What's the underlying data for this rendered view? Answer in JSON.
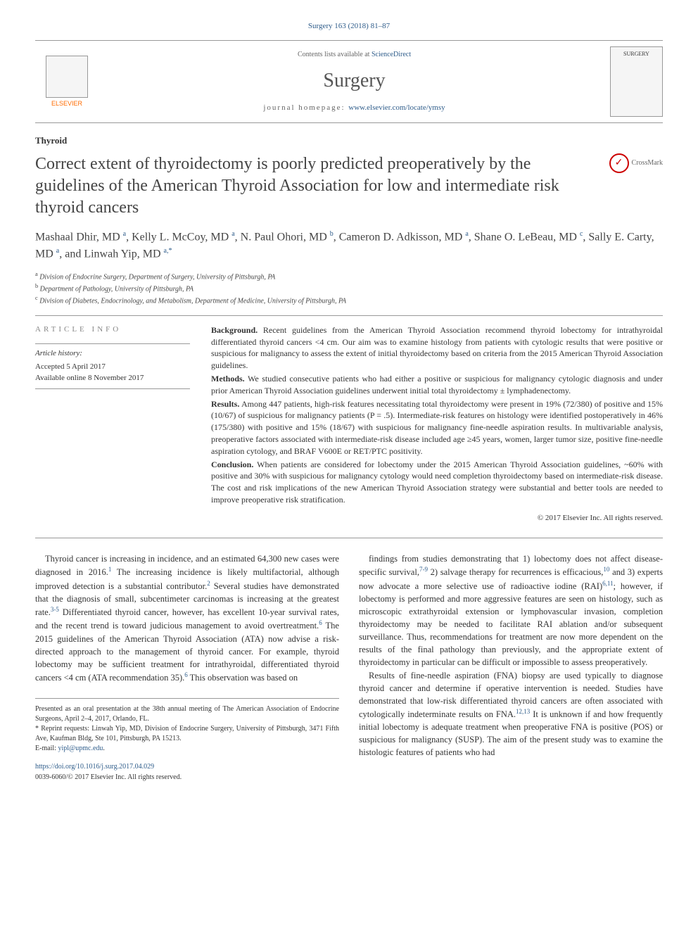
{
  "journal_ref": "Surgery 163 (2018) 81–87",
  "header": {
    "contents_prefix": "Contents lists available at ",
    "contents_link": "ScienceDirect",
    "journal_name": "Surgery",
    "homepage_prefix": "journal homepage: ",
    "homepage_link": "www.elsevier.com/locate/ymsy",
    "publisher": "ELSEVIER",
    "cover_label": "SURGERY"
  },
  "section_label": "Thyroid",
  "title": "Correct extent of thyroidectomy is poorly predicted preoperatively by the guidelines of the American Thyroid Association for low and intermediate risk thyroid cancers",
  "crossmark": "CrossMark",
  "authors_html": "Mashaal Dhir, MD <sup>a</sup>, Kelly L. McCoy, MD <sup>a</sup>, N. Paul Ohori, MD <sup>b</sup>, Cameron D. Adkisson, MD <sup>a</sup>, Shane O. LeBeau, MD <sup>c</sup>, Sally E. Carty, MD <sup>a</sup>, and Linwah Yip, MD <sup>a,*</sup>",
  "affiliations": {
    "a": "Division of Endocrine Surgery, Department of Surgery, University of Pittsburgh, PA",
    "b": "Department of Pathology, University of Pittsburgh, PA",
    "c": "Division of Diabetes, Endocrinology, and Metabolism, Department of Medicine, University of Pittsburgh, PA"
  },
  "article_info": {
    "heading": "ARTICLE INFO",
    "history_label": "Article history:",
    "accepted": "Accepted 5 April 2017",
    "online": "Available online 8 November 2017"
  },
  "abstract": {
    "background_label": "Background.",
    "background": "Recent guidelines from the American Thyroid Association recommend thyroid lobectomy for intrathyroidal differentiated thyroid cancers <4 cm. Our aim was to examine histology from patients with cytologic results that were positive or suspicious for malignancy to assess the extent of initial thyroidectomy based on criteria from the 2015 American Thyroid Association guidelines.",
    "methods_label": "Methods.",
    "methods": "We studied consecutive patients who had either a positive or suspicious for malignancy cytologic diagnosis and under prior American Thyroid Association guidelines underwent initial total thyroidectomy ± lymphadenectomy.",
    "results_label": "Results.",
    "results": "Among 447 patients, high-risk features necessitating total thyroidectomy were present in 19% (72/380) of positive and 15% (10/67) of suspicious for malignancy patients (P = .5). Intermediate-risk features on histology were identified postoperatively in 46% (175/380) with positive and 15% (18/67) with suspicious for malignancy fine-needle aspiration results. In multivariable analysis, preoperative factors associated with intermediate-risk disease included age ≥45 years, women, larger tumor size, positive fine-needle aspiration cytology, and BRAF V600E or RET/PTC positivity.",
    "conclusion_label": "Conclusion.",
    "conclusion": "When patients are considered for lobectomy under the 2015 American Thyroid Association guidelines, ~60% with positive and 30% with suspicious for malignancy cytology would need completion thyroidectomy based on intermediate-risk disease. The cost and risk implications of the new American Thyroid Association strategy were substantial and better tools are needed to improve preoperative risk stratification.",
    "copyright": "© 2017 Elsevier Inc. All rights reserved."
  },
  "body": {
    "col1_p1": "Thyroid cancer is increasing in incidence, and an estimated 64,300 new cases were diagnosed in 2016.<sup>1</sup> The increasing incidence is likely multifactorial, although improved detection is a substantial contributor.<sup>2</sup> Several studies have demonstrated that the diagnosis of small, subcentimeter carcinomas is increasing at the greatest rate.<sup>3-5</sup> Differentiated thyroid cancer, however, has excellent 10-year survival rates, and the recent trend is toward judicious management to avoid overtreatment.<sup>6</sup> The 2015 guidelines of the American Thyroid Association (ATA) now advise a risk-directed approach to the management of thyroid cancer. For example, thyroid lobectomy may be sufficient treatment for intrathyroidal, differentiated thyroid cancers <4 cm (ATA recommendation 35).<sup>6</sup> This observation was based on",
    "col2_p1": "findings from studies demonstrating that 1) lobectomy does not affect disease-specific survival,<sup>7-9</sup> 2) salvage therapy for recurrences is efficacious,<sup>10</sup> and 3) experts now advocate a more selective use of radioactive iodine (RAI)<sup>6,11</sup>; however, if lobectomy is performed and more aggressive features are seen on histology, such as microscopic extrathyroidal extension or lymphovascular invasion, completion thyroidectomy may be needed to facilitate RAI ablation and/or subsequent surveillance. Thus, recommendations for treatment are now more dependent on the results of the final pathology than previously, and the appropriate extent of thyroidectomy in particular can be difficult or impossible to assess preoperatively.",
    "col2_p2": "Results of fine-needle aspiration (FNA) biopsy are used typically to diagnose thyroid cancer and determine if operative intervention is needed. Studies have demonstrated that low-risk differentiated thyroid cancers are often associated with cytologically indeterminate results on FNA.<sup>12,13</sup> It is unknown if and how frequently initial lobectomy is adequate treatment when preoperative FNA is positive (POS) or suspicious for malignancy (SUSP). The aim of the present study was to examine the histologic features of patients who had"
  },
  "footnotes": {
    "presented": "Presented as an oral presentation at the 38th annual meeting of The American Association of Endocrine Surgeons, April 2–4, 2017, Orlando, FL.",
    "reprint": "* Reprint requests: Linwah Yip, MD, Division of Endocrine Surgery, University of Pittsburgh, 3471 Fifth Ave, Kaufman Bldg, Ste 101, Pittsburgh, PA 15213.",
    "email_label": "E-mail: ",
    "email": "yipl@upmc.edu"
  },
  "footer": {
    "doi": "https://doi.org/10.1016/j.surg.2017.04.029",
    "issn_line": "0039-6060/© 2017 Elsevier Inc. All rights reserved."
  },
  "colors": {
    "link": "#2e5c8a",
    "text": "#333333",
    "elsevier": "#ff6b00",
    "border": "#999999"
  }
}
